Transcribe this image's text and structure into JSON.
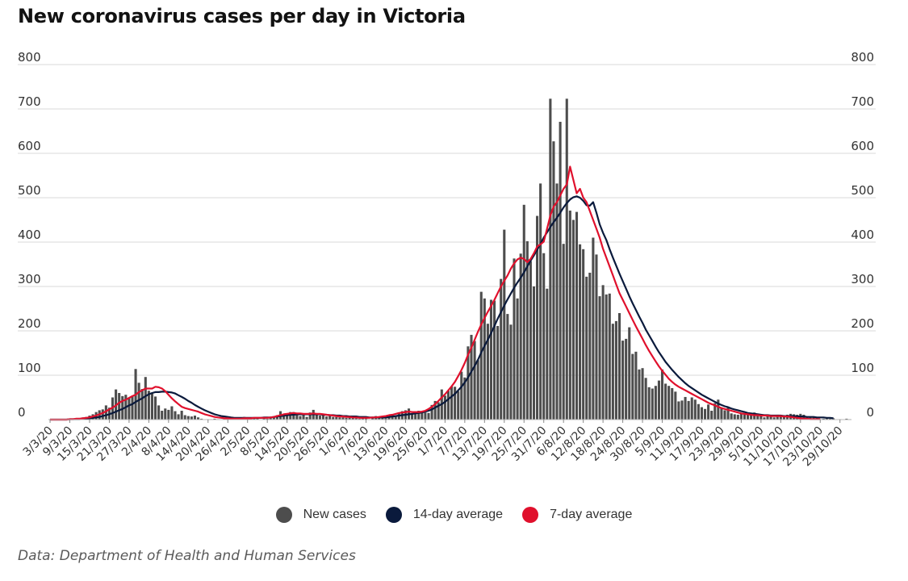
{
  "title": "New coronavirus cases per day in Victoria",
  "source": "Data: Department of Health and Human Services",
  "colors": {
    "bars": "#4d4d4d",
    "avg14": "#0a1a3c",
    "avg7": "#e0102c",
    "grid": "#d9d9d9"
  },
  "legend": [
    {
      "label": "New cases",
      "color": "#4d4d4d"
    },
    {
      "label": "14-day average",
      "color": "#0a1a3c"
    },
    {
      "label": "7-day average",
      "color": "#e0102c"
    }
  ],
  "chart_data": {
    "type": "bar",
    "title": "New coronavirus cases per day in Victoria",
    "x_start_date": "2020-03-03",
    "x_ticks": [
      "3/3/20",
      "9/3/20",
      "15/3/20",
      "21/3/20",
      "27/3/20",
      "2/4/20",
      "8/4/20",
      "14/4/20",
      "20/4/20",
      "26/4/20",
      "2/5/20",
      "8/5/20",
      "14/5/20",
      "20/5/20",
      "26/5/20",
      "1/6/20",
      "7/6/20",
      "13/6/20",
      "19/6/20",
      "25/6/20",
      "1/7/20",
      "7/7/20",
      "13/7/20",
      "19/7/20",
      "25/7/20",
      "31/7/20",
      "6/8/20",
      "12/8/20",
      "18/8/20",
      "24/8/20",
      "30/8/20",
      "5/9/20",
      "11/9/20",
      "17/9/20",
      "23/9/20",
      "29/9/20",
      "5/10/20",
      "11/10/20",
      "17/10/20",
      "23/10/20",
      "29/10/20"
    ],
    "ylim": [
      0,
      800
    ],
    "y_ticks": [
      0,
      100,
      200,
      300,
      400,
      500,
      600,
      700,
      800
    ],
    "grid": true,
    "legend_position": "bottom",
    "series": [
      {
        "name": "New cases",
        "type": "bar",
        "values": [
          1,
          0,
          1,
          0,
          1,
          1,
          1,
          2,
          3,
          3,
          5,
          6,
          9,
          12,
          17,
          21,
          23,
          32,
          27,
          50,
          68,
          60,
          53,
          56,
          50,
          52,
          114,
          83,
          69,
          96,
          65,
          61,
          52,
          32,
          20,
          25,
          22,
          30,
          19,
          12,
          20,
          10,
          8,
          7,
          9,
          5,
          2,
          0,
          1,
          1,
          2,
          1,
          0,
          2,
          3,
          1,
          4,
          3,
          5,
          6,
          2,
          3,
          5,
          3,
          0,
          5,
          2,
          3,
          7,
          10,
          19,
          12,
          14,
          17,
          17,
          10,
          8,
          13,
          6,
          16,
          22,
          12,
          9,
          10,
          7,
          10,
          6,
          6,
          5,
          5,
          4,
          6,
          5,
          3,
          2,
          3,
          5,
          1,
          4,
          8,
          4,
          6,
          3,
          7,
          12,
          9,
          14,
          19,
          21,
          25,
          13,
          18,
          20,
          17,
          16,
          15,
          33,
          42,
          39,
          68,
          54,
          65,
          75,
          74,
          64,
          108,
          95,
          165,
          191,
          177,
          134,
          288,
          273,
          216,
          270,
          268,
          211,
          317,
          428,
          238,
          214,
          363,
          273,
          374,
          484,
          402,
          357,
          300,
          459,
          532,
          375,
          295,
          723,
          627,
          532,
          671,
          396,
          723,
          471,
          450,
          468,
          395,
          384,
          322,
          331,
          410,
          372,
          278,
          303,
          282,
          284,
          216,
          222,
          240,
          178,
          182,
          208,
          148,
          153,
          113,
          116,
          94,
          73,
          70,
          76,
          88,
          113,
          81,
          76,
          71,
          63,
          41,
          43,
          51,
          42,
          50,
          45,
          35,
          28,
          24,
          34,
          20,
          37,
          45,
          27,
          21,
          28,
          14,
          12,
          11,
          15,
          12,
          14,
          12,
          16,
          13,
          10,
          5,
          8,
          9,
          5,
          11,
          10,
          10,
          11,
          13,
          12,
          11,
          13,
          11,
          6,
          5,
          7,
          5,
          1,
          2,
          4,
          2,
          3,
          0,
          1,
          0,
          2,
          1
        ]
      },
      {
        "name": "14-day average",
        "type": "line",
        "values": [
          0,
          0,
          0,
          0,
          0,
          0,
          1,
          1,
          1,
          1,
          2,
          2,
          3,
          4,
          5,
          6,
          8,
          10,
          12,
          15,
          18,
          21,
          24,
          28,
          32,
          35,
          40,
          44,
          48,
          53,
          57,
          60,
          62,
          62,
          63,
          63,
          62,
          61,
          59,
          55,
          51,
          47,
          42,
          38,
          33,
          29,
          25,
          21,
          18,
          15,
          12,
          10,
          8,
          7,
          6,
          5,
          4,
          4,
          4,
          4,
          4,
          4,
          4,
          4,
          4,
          5,
          5,
          5,
          6,
          7,
          8,
          9,
          10,
          11,
          11,
          12,
          12,
          12,
          12,
          12,
          12,
          12,
          12,
          11,
          11,
          10,
          10,
          9,
          9,
          8,
          8,
          7,
          7,
          7,
          6,
          6,
          6,
          5,
          5,
          5,
          5,
          5,
          5,
          6,
          7,
          8,
          9,
          10,
          11,
          12,
          13,
          14,
          15,
          16,
          18,
          20,
          23,
          27,
          31,
          35,
          40,
          46,
          52,
          58,
          66,
          74,
          84,
          95,
          108,
          121,
          135,
          151,
          166,
          180,
          195,
          211,
          227,
          242,
          257,
          271,
          284,
          297,
          309,
          320,
          332,
          345,
          358,
          370,
          383,
          396,
          410,
          422,
          434,
          445,
          455,
          466,
          478,
          488,
          496,
          501,
          503,
          500,
          493,
          483,
          482,
          490,
          466,
          440,
          421,
          405,
          384,
          365,
          347,
          329,
          312,
          295,
          278,
          262,
          247,
          232,
          218,
          203,
          190,
          177,
          164,
          152,
          141,
          130,
          121,
          112,
          104,
          96,
          89,
          82,
          76,
          71,
          66,
          61,
          56,
          52,
          48,
          44,
          40,
          36,
          33,
          30,
          28,
          25,
          23,
          21,
          19,
          17,
          15,
          14,
          13,
          12,
          11,
          10,
          10,
          9,
          9,
          9,
          9,
          8,
          8,
          8,
          8,
          7,
          7,
          7,
          6,
          6,
          6,
          5,
          5,
          5,
          4,
          4,
          3
        ]
      },
      {
        "name": "7-day average",
        "type": "line",
        "values": [
          0,
          0,
          0,
          0,
          0,
          0,
          1,
          1,
          2,
          2,
          3,
          4,
          5,
          7,
          9,
          12,
          15,
          19,
          23,
          27,
          32,
          38,
          42,
          45,
          49,
          53,
          56,
          62,
          66,
          70,
          70,
          70,
          74,
          73,
          70,
          64,
          56,
          48,
          41,
          35,
          29,
          26,
          24,
          22,
          20,
          18,
          15,
          12,
          10,
          8,
          6,
          5,
          4,
          3,
          3,
          2,
          2,
          2,
          2,
          3,
          3,
          3,
          4,
          4,
          4,
          4,
          4,
          5,
          6,
          8,
          10,
          12,
          13,
          14,
          15,
          14,
          14,
          13,
          13,
          13,
          14,
          13,
          13,
          12,
          11,
          10,
          9,
          8,
          7,
          7,
          6,
          6,
          5,
          5,
          4,
          4,
          4,
          4,
          5,
          5,
          6,
          7,
          8,
          10,
          11,
          13,
          15,
          16,
          17,
          18,
          17,
          17,
          17,
          18,
          20,
          24,
          29,
          35,
          42,
          50,
          57,
          66,
          75,
          85,
          98,
          112,
          128,
          146,
          162,
          180,
          198,
          214,
          229,
          243,
          256,
          270,
          285,
          300,
          313,
          325,
          340,
          352,
          361,
          365,
          362,
          355,
          362,
          375,
          390,
          395,
          401,
          430,
          460,
          480,
          490,
          505,
          520,
          530,
          570,
          540,
          510,
          520,
          500,
          490,
          470,
          450,
          430,
          410,
          385,
          365,
          345,
          325,
          305,
          285,
          270,
          255,
          240,
          225,
          210,
          196,
          182,
          168,
          155,
          143,
          131,
          120,
          110,
          101,
          92,
          85,
          79,
          74,
          70,
          66,
          62,
          58,
          54,
          50,
          46,
          42,
          38,
          35,
          32,
          29,
          26,
          24,
          22,
          20,
          18,
          16,
          14,
          13,
          12,
          11,
          10,
          10,
          9,
          9,
          9,
          8,
          8,
          8,
          8,
          7,
          7,
          6,
          5,
          4,
          3,
          2,
          2,
          1,
          1,
          1,
          1
        ]
      }
    ]
  }
}
